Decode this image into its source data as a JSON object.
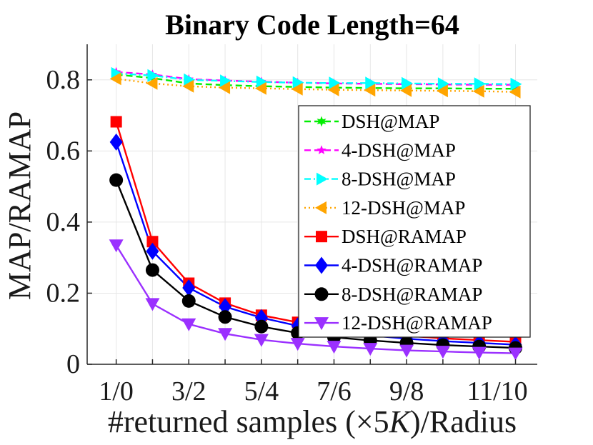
{
  "chart_data": {
    "type": "line",
    "title": "Binary Code Length=64",
    "xlabel_prefix": "#returned samples (×5",
    "xlabel_var": "K",
    "xlabel_suffix": ")/Radius",
    "ylabel": "MAP/RAMAP",
    "x": [
      1,
      2,
      3,
      4,
      5,
      6,
      7,
      8,
      9,
      10,
      11,
      12
    ],
    "xlim": [
      0.2,
      12.6
    ],
    "ylim": [
      0,
      0.9
    ],
    "grid": true,
    "legend_position": "center-right",
    "x_ticks": [
      {
        "x": 1,
        "label": "1/0"
      },
      {
        "x": 3,
        "label": "3/2"
      },
      {
        "x": 5,
        "label": "5/4"
      },
      {
        "x": 7,
        "label": "7/6"
      },
      {
        "x": 9,
        "label": "9/8"
      },
      {
        "x": 11.5,
        "label": "11/10"
      }
    ],
    "y_ticks": [
      {
        "y": 0,
        "label": "0"
      },
      {
        "y": 0.2,
        "label": "0.2"
      },
      {
        "y": 0.4,
        "label": "0.4"
      },
      {
        "y": 0.6,
        "label": "0.6"
      },
      {
        "y": 0.8,
        "label": "0.8"
      }
    ],
    "series": [
      {
        "name": "DSH@MAP",
        "color": "#00ee00",
        "marker": "star6",
        "dash": "dashed",
        "values": [
          0.815,
          0.805,
          0.79,
          0.785,
          0.782,
          0.78,
          0.778,
          0.777,
          0.776,
          0.776,
          0.775,
          0.775
        ]
      },
      {
        "name": "4-DSH@MAP",
        "color": "#ff00ff",
        "marker": "star5",
        "dash": "dashed",
        "values": [
          0.822,
          0.815,
          0.802,
          0.798,
          0.795,
          0.792,
          0.79,
          0.789,
          0.788,
          0.787,
          0.786,
          0.786
        ]
      },
      {
        "name": "8-DSH@MAP",
        "color": "#00ffff",
        "marker": "triangle-right",
        "dash": "dashdot",
        "values": [
          0.818,
          0.812,
          0.8,
          0.797,
          0.794,
          0.792,
          0.791,
          0.791,
          0.79,
          0.789,
          0.789,
          0.788
        ]
      },
      {
        "name": "12-DSH@MAP",
        "color": "#ffa500",
        "marker": "triangle-left",
        "dash": "dotted",
        "values": [
          0.803,
          0.79,
          0.782,
          0.778,
          0.776,
          0.774,
          0.772,
          0.771,
          0.77,
          0.769,
          0.768,
          0.766
        ]
      },
      {
        "name": "DSH@RAMAP",
        "color": "#ff0000",
        "marker": "square",
        "dash": "solid",
        "values": [
          0.682,
          0.345,
          0.228,
          0.172,
          0.138,
          0.118,
          0.102,
          0.09,
          0.08,
          0.073,
          0.068,
          0.063
        ]
      },
      {
        "name": "4-DSH@RAMAP",
        "color": "#0000ff",
        "marker": "diamond",
        "dash": "solid",
        "values": [
          0.625,
          0.318,
          0.215,
          0.162,
          0.131,
          0.108,
          0.092,
          0.081,
          0.072,
          0.065,
          0.06,
          0.055
        ]
      },
      {
        "name": "8-DSH@RAMAP",
        "color": "#000000",
        "marker": "circle",
        "dash": "solid",
        "values": [
          0.518,
          0.265,
          0.178,
          0.133,
          0.106,
          0.088,
          0.076,
          0.067,
          0.06,
          0.054,
          0.05,
          0.046
        ]
      },
      {
        "name": "12-DSH@RAMAP",
        "color": "#9b30ff",
        "marker": "triangle-down",
        "dash": "solid",
        "values": [
          0.335,
          0.17,
          0.113,
          0.086,
          0.069,
          0.058,
          0.05,
          0.044,
          0.039,
          0.036,
          0.033,
          0.031
        ]
      }
    ]
  }
}
